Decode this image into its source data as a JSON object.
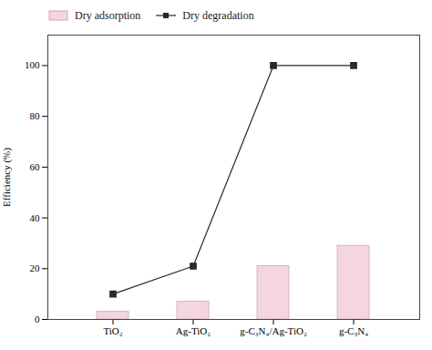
{
  "chart_data": {
    "type": "bar",
    "categories": [
      "TiO₂",
      "Ag-TiO₂",
      "g-C₃N₄/Ag-TiO₂",
      "g-C₃N₄"
    ],
    "series": [
      {
        "name": "Dry adsorption",
        "type": "bar",
        "color": "#f5d5e0",
        "values": [
          3,
          7,
          21,
          29
        ]
      },
      {
        "name": "Dry degradation",
        "type": "line",
        "color": "#2a2a2a",
        "marker": "square",
        "values": [
          10,
          21,
          100,
          100
        ]
      }
    ],
    "ylabel": "Efficiency (%)",
    "ylim": [
      0,
      112
    ],
    "yticks": [
      0,
      20,
      40,
      60,
      80,
      100
    ],
    "legend": "upper left"
  }
}
